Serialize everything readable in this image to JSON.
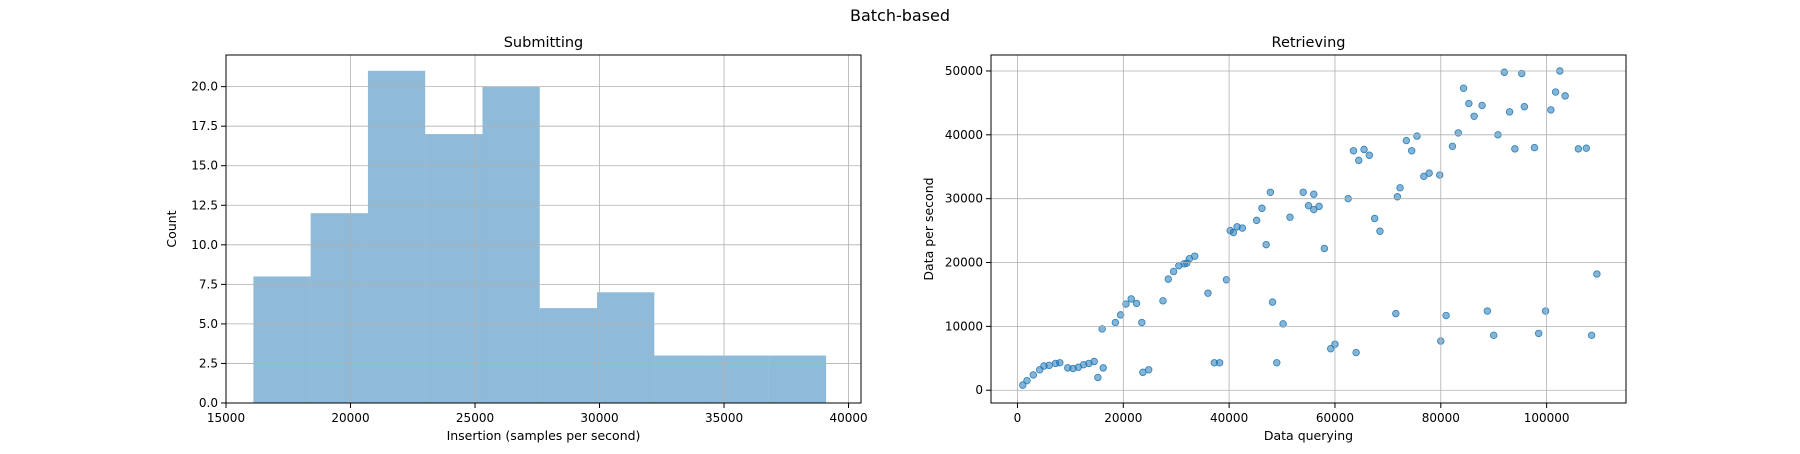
{
  "figure": {
    "suptitle": "Batch-based"
  },
  "chart_data": [
    {
      "type": "bar",
      "title": "Submitting",
      "xlabel": "Insertion (samples per second)",
      "ylabel": "Count",
      "xlim": [
        15000,
        40500
      ],
      "ylim": [
        0,
        22
      ],
      "xticks": [
        15000,
        20000,
        25000,
        30000,
        35000,
        40000
      ],
      "yticks": [
        0.0,
        2.5,
        5.0,
        7.5,
        10.0,
        12.5,
        15.0,
        17.5,
        20.0
      ],
      "bin_edges": [
        16100,
        18400,
        20700,
        23000,
        25300,
        27600,
        29900,
        32200,
        34500,
        36800,
        39100
      ],
      "values": [
        8,
        12,
        21,
        17,
        20,
        6,
        7,
        3,
        3,
        3
      ],
      "color": "#1f77b4",
      "alpha": 0.5,
      "grid": true
    },
    {
      "type": "scatter",
      "title": "Retrieving",
      "xlabel": "Data querying",
      "ylabel": "Data per second",
      "xlim": [
        -5000,
        115000
      ],
      "ylim": [
        -2000,
        52500
      ],
      "xticks": [
        0,
        20000,
        40000,
        60000,
        80000,
        100000
      ],
      "yticks": [
        0,
        10000,
        20000,
        30000,
        40000,
        50000
      ],
      "color": "#1f77b4",
      "alpha": 0.55,
      "grid": true,
      "points": [
        [
          1000,
          800
        ],
        [
          1800,
          1500
        ],
        [
          3000,
          2400
        ],
        [
          4200,
          3200
        ],
        [
          5000,
          3800
        ],
        [
          6000,
          3900
        ],
        [
          7200,
          4200
        ],
        [
          8000,
          4300
        ],
        [
          9500,
          3500
        ],
        [
          10500,
          3400
        ],
        [
          11500,
          3600
        ],
        [
          12500,
          4000
        ],
        [
          13500,
          4200
        ],
        [
          14500,
          4500
        ],
        [
          15200,
          2000
        ],
        [
          16000,
          9600
        ],
        [
          16200,
          3500
        ],
        [
          18500,
          10600
        ],
        [
          19500,
          11800
        ],
        [
          20500,
          13500
        ],
        [
          21500,
          14300
        ],
        [
          22500,
          13600
        ],
        [
          23500,
          10600
        ],
        [
          23700,
          2800
        ],
        [
          24800,
          3200
        ],
        [
          27500,
          14000
        ],
        [
          28500,
          17400
        ],
        [
          29500,
          18600
        ],
        [
          30500,
          19500
        ],
        [
          31500,
          19800
        ],
        [
          32000,
          19900
        ],
        [
          32500,
          20600
        ],
        [
          33500,
          21000
        ],
        [
          36000,
          15200
        ],
        [
          37200,
          4300
        ],
        [
          38200,
          4300
        ],
        [
          39500,
          17300
        ],
        [
          40200,
          25000
        ],
        [
          40800,
          24700
        ],
        [
          41500,
          25600
        ],
        [
          42500,
          25400
        ],
        [
          45200,
          26600
        ],
        [
          46200,
          28500
        ],
        [
          47000,
          22800
        ],
        [
          47800,
          31000
        ],
        [
          48200,
          13800
        ],
        [
          49000,
          4300
        ],
        [
          50200,
          10400
        ],
        [
          51500,
          27100
        ],
        [
          54000,
          31000
        ],
        [
          55000,
          28900
        ],
        [
          56000,
          30700
        ],
        [
          56000,
          28300
        ],
        [
          57000,
          28800
        ],
        [
          58000,
          22200
        ],
        [
          59200,
          6500
        ],
        [
          60000,
          7200
        ],
        [
          62500,
          30000
        ],
        [
          63500,
          37500
        ],
        [
          64000,
          5900
        ],
        [
          64500,
          36000
        ],
        [
          65500,
          37700
        ],
        [
          66500,
          36800
        ],
        [
          67500,
          26900
        ],
        [
          68500,
          24900
        ],
        [
          71500,
          12000
        ],
        [
          71800,
          30300
        ],
        [
          72300,
          31700
        ],
        [
          73500,
          39100
        ],
        [
          74500,
          37500
        ],
        [
          75500,
          39800
        ],
        [
          76800,
          33500
        ],
        [
          77800,
          34000
        ],
        [
          79800,
          33700
        ],
        [
          80000,
          7700
        ],
        [
          81000,
          11700
        ],
        [
          82200,
          38200
        ],
        [
          83300,
          40300
        ],
        [
          84300,
          47300
        ],
        [
          85300,
          44900
        ],
        [
          86300,
          42900
        ],
        [
          87800,
          44600
        ],
        [
          88800,
          12400
        ],
        [
          90000,
          8600
        ],
        [
          90800,
          40000
        ],
        [
          92000,
          49800
        ],
        [
          93000,
          43600
        ],
        [
          94000,
          37800
        ],
        [
          95300,
          49600
        ],
        [
          95800,
          44400
        ],
        [
          97700,
          38000
        ],
        [
          98500,
          8900
        ],
        [
          99800,
          12400
        ],
        [
          100800,
          43900
        ],
        [
          101700,
          46700
        ],
        [
          102500,
          50000
        ],
        [
          103500,
          46100
        ],
        [
          106000,
          37800
        ],
        [
          107500,
          37900
        ],
        [
          108500,
          8600
        ],
        [
          109500,
          18200
        ]
      ]
    }
  ]
}
